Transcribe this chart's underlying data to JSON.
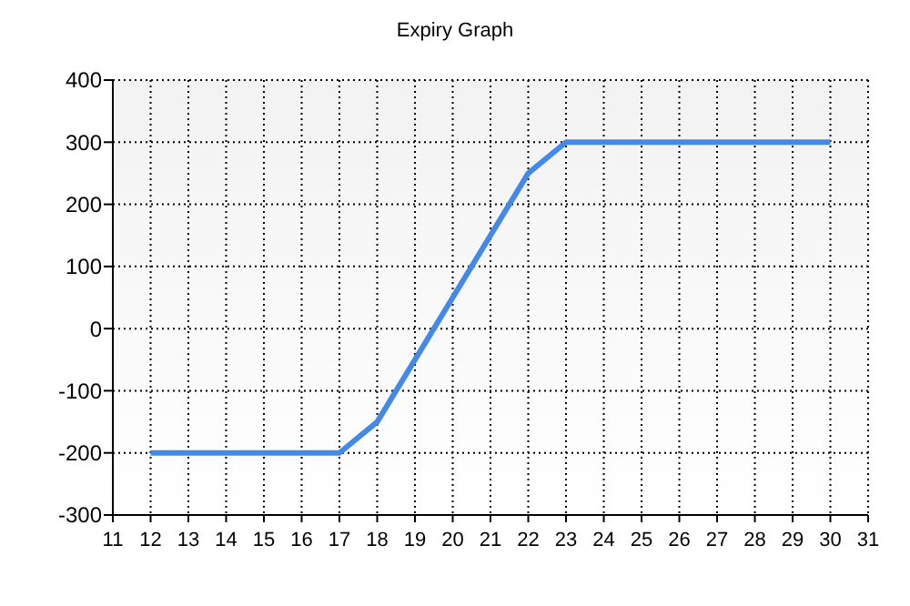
{
  "chart_data": {
    "type": "line",
    "title": "Expiry Graph",
    "x": [
      12,
      17,
      18,
      22,
      23,
      30
    ],
    "series": [
      {
        "color": "#4589e8",
        "values": [
          -200,
          -200,
          -150,
          250,
          300,
          300
        ]
      }
    ],
    "xlim": [
      11,
      31
    ],
    "xticks": [
      11,
      12,
      13,
      14,
      15,
      16,
      17,
      18,
      19,
      20,
      21,
      22,
      23,
      24,
      25,
      26,
      27,
      28,
      29,
      30,
      31
    ],
    "ylim": [
      -300,
      400
    ],
    "yticks": [
      -300,
      -200,
      -100,
      0,
      100,
      200,
      300,
      400
    ],
    "grid": true,
    "marker": "none",
    "line_style": "solid"
  }
}
